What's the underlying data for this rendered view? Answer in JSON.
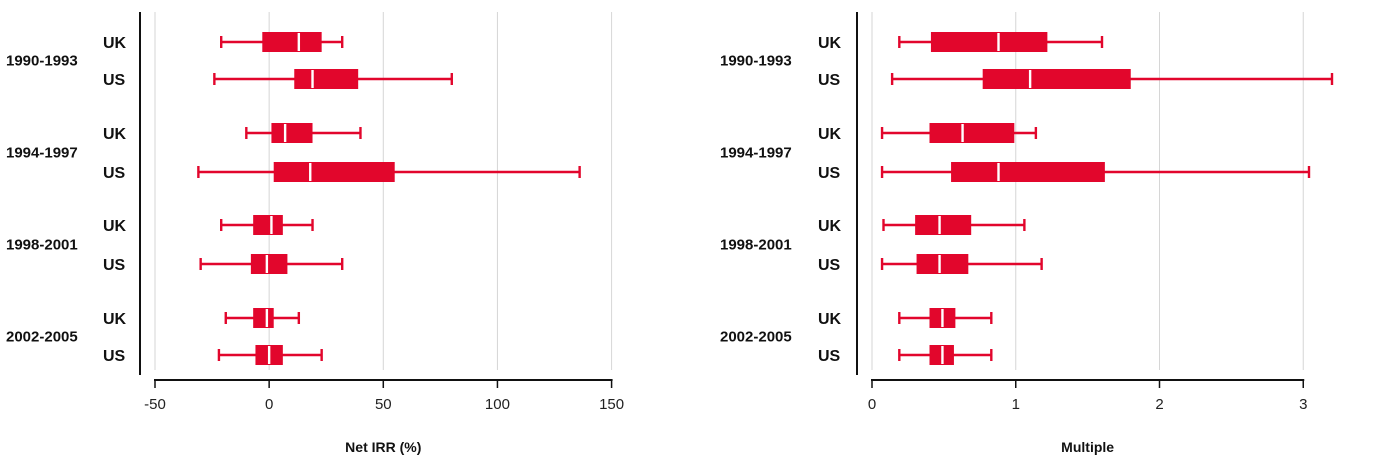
{
  "colors": {
    "accent": "#e2062c",
    "axis": "#111111",
    "grid": "#d6d6d6",
    "median": "#ffffff"
  },
  "chart_data": [
    {
      "type": "boxplot",
      "orientation": "horizontal",
      "xlabel": "Net IRR (%)",
      "xlim": [
        -50,
        155
      ],
      "xticks": [
        -50,
        0,
        50,
        100,
        150
      ],
      "xtick_labels": [
        "-50",
        "0",
        "50",
        "100",
        "150"
      ],
      "grid": "vertical",
      "groups": [
        {
          "period": "1990-1993",
          "rows": [
            {
              "series": "UK",
              "min": -21,
              "q1": -3,
              "median": 13,
              "q3": 23,
              "max": 32
            },
            {
              "series": "US",
              "min": -24,
              "q1": 11,
              "median": 19,
              "q3": 39,
              "max": 80
            }
          ]
        },
        {
          "period": "1994-1997",
          "rows": [
            {
              "series": "UK",
              "min": -10,
              "q1": 1,
              "median": 7,
              "q3": 19,
              "max": 40
            },
            {
              "series": "US",
              "min": -31,
              "q1": 2,
              "median": 18,
              "q3": 55,
              "max": 136
            }
          ]
        },
        {
          "period": "1998-2001",
          "rows": [
            {
              "series": "UK",
              "min": -21,
              "q1": -7,
              "median": 1,
              "q3": 6,
              "max": 19
            },
            {
              "series": "US",
              "min": -30,
              "q1": -8,
              "median": -1,
              "q3": 8,
              "max": 32
            }
          ]
        },
        {
          "period": "2002-2005",
          "rows": [
            {
              "series": "UK",
              "min": -19,
              "q1": -7,
              "median": -1,
              "q3": 2,
              "max": 13
            },
            {
              "series": "US",
              "min": -22,
              "q1": -6,
              "median": 0,
              "q3": 6,
              "max": 23
            }
          ]
        }
      ]
    },
    {
      "type": "boxplot",
      "orientation": "horizontal",
      "xlabel": "Multiple",
      "xlim": [
        0,
        3.2
      ],
      "xticks": [
        0,
        1,
        2,
        3
      ],
      "xtick_labels": [
        "0",
        "1",
        "2",
        "3"
      ],
      "grid": "vertical",
      "groups": [
        {
          "period": "1990-1993",
          "rows": [
            {
              "series": "UK",
              "min": 0.19,
              "q1": 0.41,
              "median": 0.88,
              "q3": 1.22,
              "max": 1.6
            },
            {
              "series": "US",
              "min": 0.14,
              "q1": 0.77,
              "median": 1.1,
              "q3": 1.8,
              "max": 3.2
            }
          ]
        },
        {
          "period": "1994-1997",
          "rows": [
            {
              "series": "UK",
              "min": 0.07,
              "q1": 0.4,
              "median": 0.63,
              "q3": 0.99,
              "max": 1.14
            },
            {
              "series": "US",
              "min": 0.07,
              "q1": 0.55,
              "median": 0.88,
              "q3": 1.62,
              "max": 3.04
            }
          ]
        },
        {
          "period": "1998-2001",
          "rows": [
            {
              "series": "UK",
              "min": 0.08,
              "q1": 0.3,
              "median": 0.47,
              "q3": 0.69,
              "max": 1.06
            },
            {
              "series": "US",
              "min": 0.07,
              "q1": 0.31,
              "median": 0.47,
              "q3": 0.67,
              "max": 1.18
            }
          ]
        },
        {
          "period": "2002-2005",
          "rows": [
            {
              "series": "UK",
              "min": 0.19,
              "q1": 0.4,
              "median": 0.49,
              "q3": 0.58,
              "max": 0.83
            },
            {
              "series": "US",
              "min": 0.19,
              "q1": 0.4,
              "median": 0.49,
              "q3": 0.57,
              "max": 0.83
            }
          ]
        }
      ]
    }
  ]
}
